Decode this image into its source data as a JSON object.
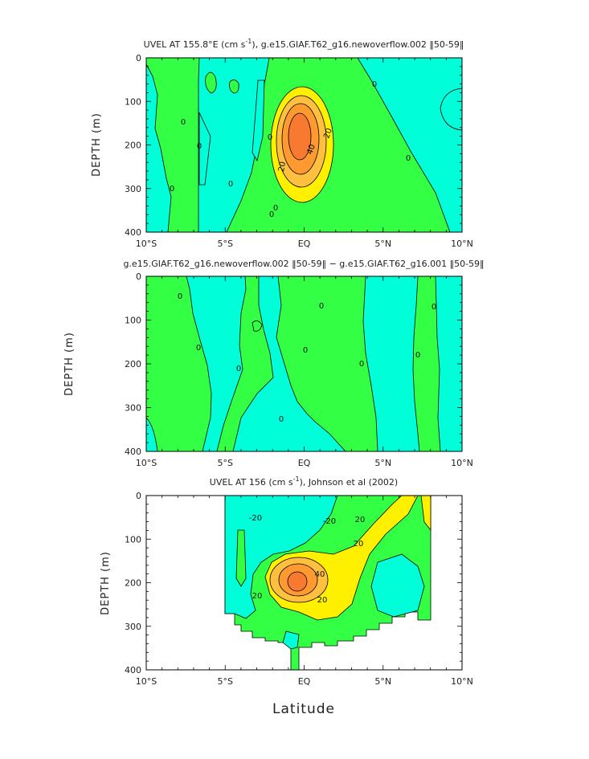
{
  "colors": {
    "cyan": "#00ffd8",
    "green": "#33ff44",
    "yellow": "#fff000",
    "orange_light": "#ffc040",
    "orange": "#ff9a30",
    "orange_dark": "#f87a30",
    "line": "#000000"
  },
  "x_label": "Latitude",
  "chart_data": [
    {
      "type": "contour",
      "title_main": "UVEL AT 155.8°E (cm s",
      "title_sup": "-1",
      "title_rest": "), g.e15.GIAF.T62_g16.newoverflow.002 ‖50-59‖",
      "ylabel": "DEPTH (m)",
      "xlim": [
        -10,
        10
      ],
      "ylim": [
        0,
        400
      ],
      "x_ticks": [
        "10°S",
        "5°S",
        "EQ",
        "5°N",
        "10°N"
      ],
      "y_ticks": [
        "0",
        "100",
        "200",
        "300",
        "400"
      ],
      "contour_labels": [
        "0",
        "0",
        "0",
        "0",
        "0",
        "0",
        "0",
        "0",
        "0",
        "20",
        "20",
        "40"
      ],
      "core": {
        "lat": -0.2,
        "depth": 175,
        "peak_value": 60
      }
    },
    {
      "type": "contour",
      "title_main": "g.e15.GIAF.T62_g16.newoverflow.002 ‖50-59‖ − g.e15.GIAF.T62_g16.001 ‖50-59‖",
      "ylabel": "DEPTH (m)",
      "xlim": [
        -10,
        10
      ],
      "ylim": [
        0,
        400
      ],
      "x_ticks": [
        "10°S",
        "5°S",
        "EQ",
        "5°N",
        "10°N"
      ],
      "y_ticks": [
        "0",
        "100",
        "200",
        "300",
        "400"
      ],
      "contour_labels": [
        "0",
        "0",
        "0",
        "0",
        "0",
        "0",
        "0",
        "0",
        "0"
      ]
    },
    {
      "type": "contour",
      "title_main": "UVEL AT 156 (cm s",
      "title_sup": "-1",
      "title_rest": "), Johnson et al (2002)",
      "ylabel": "DEPTH (m)",
      "xlim": [
        -10,
        10
      ],
      "ylim": [
        0,
        400
      ],
      "x_ticks": [
        "10°S",
        "5°S",
        "EQ",
        "5°N",
        "10°N"
      ],
      "y_ticks": [
        "0",
        "100",
        "200",
        "300",
        "400"
      ],
      "contour_labels": [
        "-20",
        "-20",
        "20",
        "20",
        "20",
        "20",
        "40"
      ],
      "data_extent": {
        "lat": [
          -5,
          8
        ]
      },
      "core": {
        "lat": -0.3,
        "depth": 205,
        "peak_value": 60
      }
    }
  ]
}
